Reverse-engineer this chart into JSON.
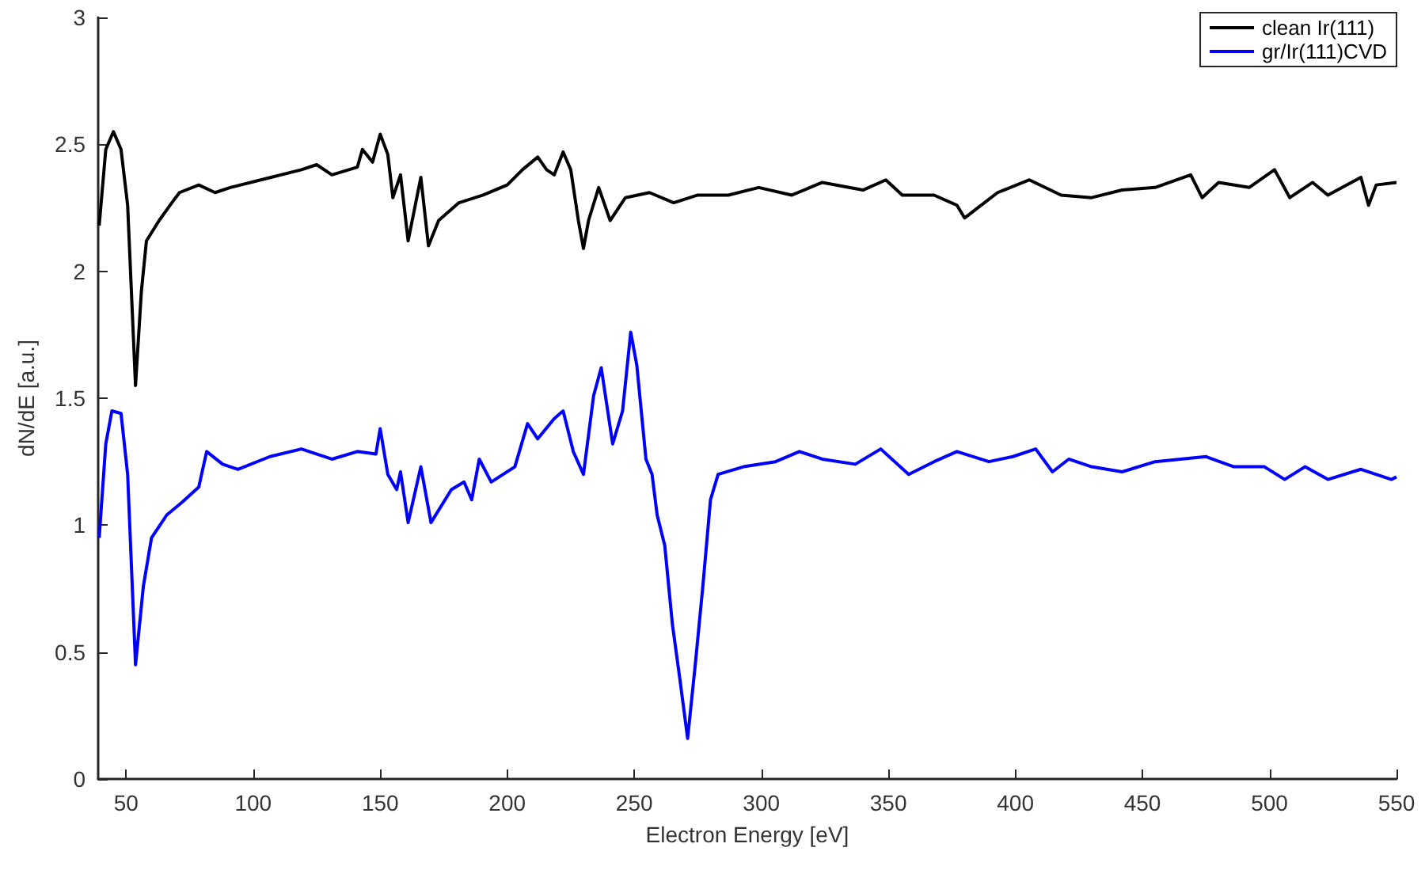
{
  "chart_data": {
    "type": "line",
    "xlabel": "Electron Energy [eV]",
    "ylabel": "dN/dE [a.u.]",
    "xlim": [
      39,
      550
    ],
    "xticks": [
      50,
      100,
      150,
      200,
      250,
      300,
      350,
      400,
      450,
      500,
      550
    ],
    "ylim": [
      0,
      3
    ],
    "yticks": [
      0,
      0.5,
      1,
      1.5,
      2,
      2.5,
      3
    ],
    "legend": "top right",
    "grid": false,
    "marker": "none",
    "line_style": "solid",
    "series": [
      {
        "name": "clean Ir(111)",
        "color": "#000000",
        "x": [
          39.4,
          42,
          45,
          48,
          50.6,
          53.7,
          56,
          58,
          63,
          68,
          71,
          78.6,
          85,
          91,
          103,
          119,
          125,
          131,
          141,
          143,
          147,
          150,
          153,
          155,
          158,
          161,
          166,
          169,
          173,
          181,
          190.5,
          200,
          206,
          212,
          215.5,
          218.5,
          222,
          225,
          228,
          230,
          232,
          236,
          240.5,
          246.5,
          256,
          265.5,
          275,
          287,
          299,
          312,
          324,
          340,
          349,
          355.5,
          368,
          377,
          380,
          393,
          405.5,
          418,
          430,
          442,
          455,
          469,
          473.5,
          480,
          492,
          502,
          508,
          517,
          523,
          536,
          539,
          542,
          550
        ],
        "values": [
          2.18,
          2.48,
          2.55,
          2.48,
          2.26,
          1.55,
          1.92,
          2.12,
          2.2,
          2.27,
          2.31,
          2.34,
          2.31,
          2.33,
          2.36,
          2.4,
          2.42,
          2.38,
          2.41,
          2.48,
          2.43,
          2.54,
          2.46,
          2.29,
          2.38,
          2.12,
          2.37,
          2.1,
          2.2,
          2.27,
          2.3,
          2.34,
          2.4,
          2.45,
          2.4,
          2.38,
          2.47,
          2.4,
          2.2,
          2.09,
          2.2,
          2.33,
          2.2,
          2.29,
          2.31,
          2.27,
          2.3,
          2.3,
          2.33,
          2.3,
          2.35,
          2.32,
          2.36,
          2.3,
          2.3,
          2.26,
          2.21,
          2.31,
          2.36,
          2.3,
          2.29,
          2.32,
          2.33,
          2.38,
          2.29,
          2.35,
          2.33,
          2.4,
          2.29,
          2.35,
          2.3,
          2.37,
          2.26,
          2.34,
          2.35
        ]
      },
      {
        "name": "gr/Ir(111)CVD",
        "color": "#0000ff",
        "x": [
          39.4,
          42,
          44.4,
          48,
          50.6,
          53.7,
          56.8,
          60,
          66,
          72,
          78.6,
          81.7,
          88,
          94,
          106.6,
          119,
          131,
          141,
          148.3,
          150,
          153,
          156.5,
          158,
          161,
          166,
          170,
          178,
          183,
          186,
          189,
          193.7,
          203,
          208,
          212,
          218.5,
          222,
          226,
          230,
          234,
          237,
          241.5,
          245.4,
          248.6,
          251,
          254.6,
          257,
          259,
          262,
          265,
          268,
          271,
          274,
          277,
          280,
          283,
          293,
          305.6,
          315,
          324,
          337,
          347,
          358,
          368,
          377,
          389.6,
          399,
          408,
          414.6,
          421,
          430,
          442,
          455,
          475,
          486,
          498,
          506,
          514,
          523,
          536,
          548,
          550
        ],
        "values": [
          0.95,
          1.32,
          1.45,
          1.44,
          1.2,
          0.45,
          0.76,
          0.95,
          1.04,
          1.09,
          1.15,
          1.29,
          1.24,
          1.22,
          1.27,
          1.3,
          1.26,
          1.29,
          1.28,
          1.38,
          1.2,
          1.14,
          1.21,
          1.01,
          1.23,
          1.01,
          1.14,
          1.17,
          1.1,
          1.26,
          1.17,
          1.23,
          1.4,
          1.34,
          1.42,
          1.45,
          1.29,
          1.2,
          1.51,
          1.62,
          1.32,
          1.45,
          1.76,
          1.63,
          1.26,
          1.2,
          1.04,
          0.92,
          0.61,
          0.39,
          0.16,
          0.45,
          0.76,
          1.1,
          1.2,
          1.23,
          1.25,
          1.29,
          1.26,
          1.24,
          1.3,
          1.2,
          1.25,
          1.29,
          1.25,
          1.27,
          1.3,
          1.21,
          1.26,
          1.23,
          1.21,
          1.25,
          1.27,
          1.23,
          1.23,
          1.18,
          1.23,
          1.18,
          1.22,
          1.18,
          1.19
        ]
      }
    ]
  }
}
